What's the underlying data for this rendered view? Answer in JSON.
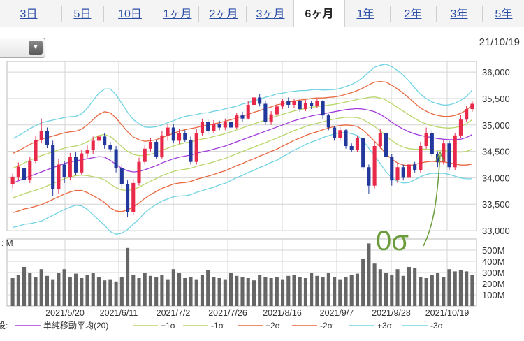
{
  "tabs": [
    {
      "label": "3日",
      "active": false
    },
    {
      "label": "5日",
      "active": false
    },
    {
      "label": "10日",
      "active": false
    },
    {
      "label": "1ヶ月",
      "active": false
    },
    {
      "label": "2ヶ月",
      "active": false
    },
    {
      "label": "3ヶ月",
      "active": false
    },
    {
      "label": "6ヶ月",
      "active": true
    },
    {
      "label": "1年",
      "active": false
    },
    {
      "label": "2年",
      "active": false
    },
    {
      "label": "3年",
      "active": false
    },
    {
      "label": "5年",
      "active": false
    }
  ],
  "display_date": "21/10/19",
  "select_arrow": "▼",
  "colors": {
    "up": "#e8294a",
    "down": "#22389c",
    "sma": "#a23bdc",
    "s1": "#b9d66a",
    "s2": "#e8683f",
    "s3": "#6fd3e3",
    "volume": "#666666",
    "annotation": "#6b9c3c"
  },
  "chart_data": {
    "type": "candlestick",
    "price_axis": {
      "ticks": [
        "36,000",
        "35,500",
        "35,000",
        "34,500",
        "34,000",
        "33,500",
        "33,000"
      ],
      "ylim": [
        33000,
        36200
      ]
    },
    "volume_axis": {
      "unit": "M",
      "label": "M",
      "ticks": [
        "500M",
        "400M",
        "300M",
        "200M",
        "100M"
      ],
      "ylim": [
        0,
        600
      ]
    },
    "x_ticks": [
      "2021/5/20",
      "2021/6/11",
      "2021/7/2",
      "2021/7/26",
      "2021/8/16",
      "2021/9/7",
      "2021/9/28",
      "2021/10/19"
    ],
    "sma": [
      33900,
      33940,
      33990,
      34030,
      34070,
      34110,
      34150,
      34190,
      34230,
      34270,
      34300,
      34320,
      34340,
      34360,
      34380,
      34400,
      34390,
      34330,
      34250,
      34180,
      34130,
      34110,
      34120,
      34150,
      34190,
      34230,
      34280,
      34320,
      34360,
      34390,
      34410,
      34430,
      34460,
      34490,
      34510,
      34540,
      34570,
      34600,
      34640,
      34680,
      34720,
      34760,
      34800,
      34840,
      34880,
      34920,
      34960,
      35000,
      35040,
      35080,
      35110,
      35140,
      35170,
      35190,
      35210,
      35230,
      35250,
      35270,
      35290,
      35300,
      35310,
      35300,
      35280,
      35250,
      35200,
      35130,
      35050,
      34980,
      34920,
      34870,
      34830,
      34800,
      34780,
      34760,
      34740,
      34730,
      34720,
      34720,
      34730,
      34760,
      34820
    ],
    "sigma": [
      280,
      285,
      290,
      300,
      305,
      310,
      305,
      300,
      295,
      290,
      285,
      280,
      290,
      320,
      360,
      400,
      430,
      450,
      440,
      410,
      370,
      330,
      300,
      270,
      255,
      245,
      240,
      240,
      240,
      245,
      250,
      250,
      245,
      245,
      240,
      240,
      235,
      235,
      230,
      225,
      225,
      220,
      220,
      215,
      215,
      210,
      210,
      200,
      195,
      185,
      180,
      170,
      165,
      160,
      150,
      145,
      140,
      140,
      145,
      155,
      170,
      200,
      240,
      280,
      310,
      340,
      350,
      350,
      340,
      320,
      290,
      260,
      240,
      225,
      220,
      215,
      220,
      230,
      245,
      260,
      280
    ],
    "candles": [
      [
        33880,
        34020,
        33800,
        34080
      ],
      [
        34010,
        34210,
        33950,
        34290
      ],
      [
        34190,
        33960,
        33880,
        34250
      ],
      [
        33960,
        34320,
        33900,
        34400
      ],
      [
        34320,
        34720,
        34280,
        34790
      ],
      [
        34720,
        34880,
        34650,
        35120
      ],
      [
        34880,
        34620,
        34560,
        34950
      ],
      [
        34620,
        33780,
        33650,
        34700
      ],
      [
        33780,
        34250,
        33700,
        34350
      ],
      [
        34250,
        34010,
        33900,
        34320
      ],
      [
        34010,
        34400,
        33950,
        34470
      ],
      [
        34400,
        34100,
        34050,
        34480
      ],
      [
        34100,
        34460,
        34060,
        34520
      ],
      [
        34460,
        34520,
        34380,
        34610
      ],
      [
        34520,
        34700,
        34450,
        34780
      ],
      [
        34700,
        34780,
        34600,
        34850
      ],
      [
        34780,
        34620,
        34550,
        34850
      ],
      [
        34620,
        34540,
        34480,
        34680
      ],
      [
        34540,
        34180,
        34100,
        34600
      ],
      [
        34180,
        33880,
        33800,
        34250
      ],
      [
        33880,
        33350,
        33250,
        33950
      ],
      [
        33350,
        33900,
        33300,
        33980
      ],
      [
        33900,
        34300,
        33850,
        34380
      ],
      [
        34300,
        34550,
        34250,
        34620
      ],
      [
        34550,
        34680,
        34500,
        34750
      ],
      [
        34680,
        34400,
        34350,
        34720
      ],
      [
        34400,
        34800,
        34350,
        34880
      ],
      [
        34800,
        34950,
        34700,
        35020
      ],
      [
        34950,
        34700,
        34650,
        35010
      ],
      [
        34700,
        34850,
        34640,
        34920
      ],
      [
        34850,
        34720,
        34680,
        34900
      ],
      [
        34720,
        34300,
        34250,
        34780
      ],
      [
        34300,
        34850,
        34250,
        34920
      ],
      [
        34850,
        35050,
        34800,
        35120
      ],
      [
        35050,
        34880,
        34820,
        35100
      ],
      [
        34880,
        35020,
        34850,
        35090
      ],
      [
        35020,
        34950,
        34900,
        35080
      ],
      [
        34950,
        35060,
        34900,
        35120
      ],
      [
        35060,
        34950,
        34900,
        35110
      ],
      [
        34950,
        35180,
        34920,
        35230
      ],
      [
        35180,
        35120,
        35060,
        35250
      ],
      [
        35120,
        35380,
        35100,
        35450
      ],
      [
        35380,
        35520,
        35300,
        35560
      ],
      [
        35520,
        35400,
        35350,
        35580
      ],
      [
        35400,
        35050,
        35000,
        35450
      ],
      [
        35050,
        35200,
        35000,
        35260
      ],
      [
        35200,
        35350,
        35150,
        35410
      ],
      [
        35350,
        35460,
        35300,
        35490
      ],
      [
        35460,
        35380,
        35320,
        35520
      ],
      [
        35380,
        35450,
        35320,
        35500
      ],
      [
        35450,
        35300,
        35250,
        35480
      ],
      [
        35300,
        35420,
        35260,
        35470
      ],
      [
        35420,
        35360,
        35300,
        35460
      ],
      [
        35360,
        35450,
        35320,
        35490
      ],
      [
        35450,
        35180,
        35100,
        35470
      ],
      [
        35180,
        34950,
        34900,
        35210
      ],
      [
        34950,
        34750,
        34700,
        34980
      ],
      [
        34750,
        34900,
        34700,
        34960
      ],
      [
        34900,
        34600,
        34550,
        34920
      ],
      [
        34600,
        34520,
        34480,
        34650
      ],
      [
        34520,
        34750,
        34480,
        34800
      ],
      [
        34750,
        34200,
        34150,
        34760
      ],
      [
        34200,
        33850,
        33700,
        34250
      ],
      [
        33850,
        34600,
        33800,
        34680
      ],
      [
        34600,
        34850,
        34550,
        34920
      ],
      [
        34850,
        34400,
        34300,
        34880
      ],
      [
        34400,
        33950,
        33850,
        34450
      ],
      [
        33950,
        34200,
        33900,
        34280
      ],
      [
        34200,
        34000,
        33950,
        34250
      ],
      [
        34000,
        34250,
        33950,
        34320
      ],
      [
        34250,
        34150,
        34100,
        34300
      ],
      [
        34150,
        34600,
        34100,
        34680
      ],
      [
        34600,
        34850,
        34550,
        34950
      ],
      [
        34850,
        34450,
        34400,
        34900
      ],
      [
        34450,
        34300,
        34200,
        34500
      ],
      [
        34300,
        34650,
        34250,
        34720
      ],
      [
        34650,
        34200,
        34150,
        34700
      ],
      [
        34200,
        34800,
        34150,
        34850
      ],
      [
        34800,
        35100,
        34750,
        35180
      ],
      [
        35100,
        35300,
        35050,
        35360
      ],
      [
        35300,
        35400,
        35250,
        35460
      ]
    ],
    "volume": [
      250,
      280,
      350,
      300,
      260,
      330,
      270,
      240,
      300,
      330,
      260,
      290,
      250,
      280,
      300,
      260,
      230,
      240,
      220,
      260,
      520,
      280,
      250,
      300,
      270,
      260,
      280,
      240,
      330,
      300,
      250,
      260,
      240,
      280,
      320,
      260,
      250,
      240,
      300,
      270,
      260,
      250,
      230,
      280,
      260,
      250,
      260,
      240,
      270,
      280,
      260,
      250,
      300,
      270,
      260,
      300,
      260,
      240,
      260,
      280,
      290,
      420,
      560,
      380,
      330,
      300,
      280,
      330,
      270,
      350,
      340,
      260,
      250,
      280,
      300,
      260,
      330,
      310,
      320,
      310,
      280
    ],
    "legend": [
      "単純移動平均(20)",
      "+1σ",
      "-1σ",
      "+2σ",
      "-2σ",
      "+3σ",
      "-3σ"
    ],
    "legend_prefix": "設",
    "annotation": "0σ"
  }
}
